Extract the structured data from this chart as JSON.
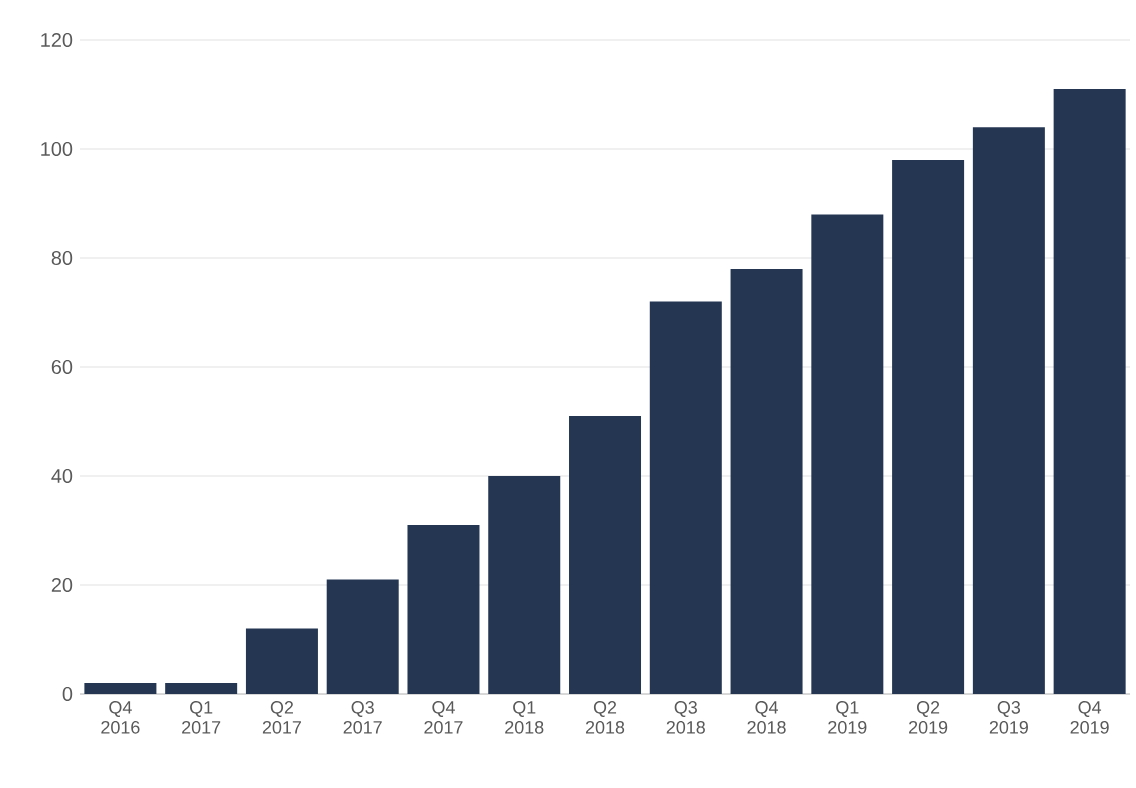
{
  "chart_data": {
    "type": "bar",
    "categories": [
      "Q4 2016",
      "Q1 2017",
      "Q2 2017",
      "Q3 2017",
      "Q4 2017",
      "Q1 2018",
      "Q2 2018",
      "Q3 2018",
      "Q4 2018",
      "Q1 2019",
      "Q2 2019",
      "Q3 2019",
      "Q4 2019"
    ],
    "values": [
      2,
      2,
      12,
      21,
      31,
      40,
      51,
      72,
      78,
      88,
      98,
      104,
      111
    ],
    "color": "#243652",
    "ylim": [
      0,
      120
    ],
    "yticks": [
      0,
      20,
      40,
      60,
      80,
      100,
      120
    ],
    "grid": "y"
  }
}
